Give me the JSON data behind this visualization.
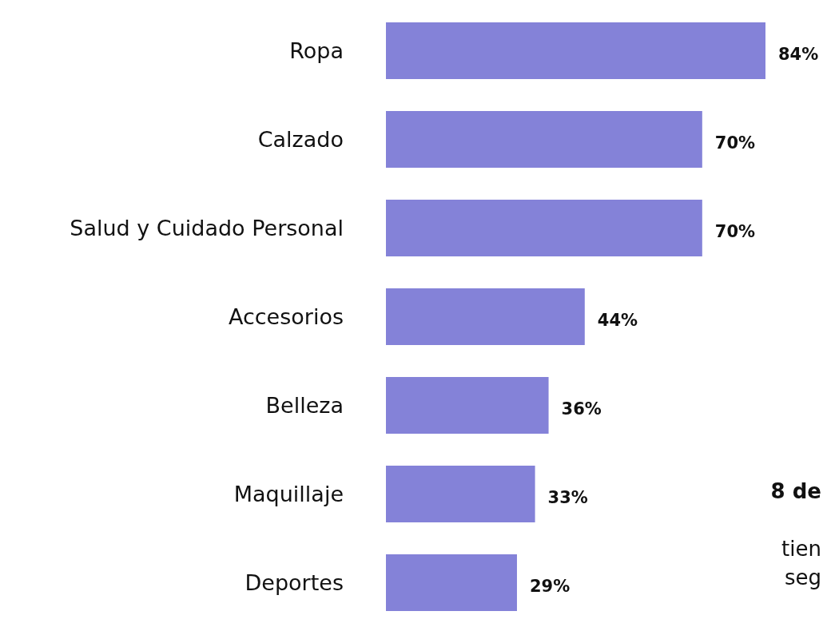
{
  "chart_data": {
    "type": "bar",
    "orientation": "horizontal",
    "categories": [
      "Ropa",
      "Calzado",
      "Salud y Cuidado Personal",
      "Accesorios",
      "Belleza",
      "Maquillaje",
      "Deportes"
    ],
    "values": [
      84,
      70,
      70,
      44,
      36,
      33,
      29
    ],
    "value_labels": [
      "84%",
      "70%",
      "70%",
      "44%",
      "36%",
      "33%",
      "29%"
    ],
    "color": "#8482d8",
    "annotations": [
      "8 de",
      "tien",
      "seg"
    ]
  }
}
